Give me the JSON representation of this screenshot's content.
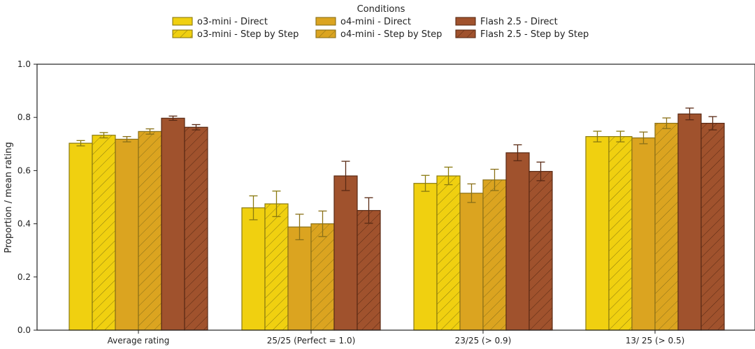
{
  "chart_data": {
    "type": "bar",
    "title": "",
    "xlabel": "",
    "ylabel": "Proportion / mean rating",
    "ylim": [
      0,
      1.0
    ],
    "yticks": [
      "0.0",
      "0.2",
      "0.4",
      "0.6",
      "0.8",
      "1.0"
    ],
    "grid": false,
    "legend": {
      "title": "Conditions",
      "placement": "top-center"
    },
    "categories": [
      "Average rating",
      "25/25 (Perfect = 1.0)",
      "23/25 (> 0.9)",
      "13/ 25 (> 0.5)"
    ],
    "series": [
      {
        "name": "o3-mini - Direct",
        "color": "#f0d010",
        "edge": "#8a7a10",
        "hatch": false,
        "values": [
          0.703,
          0.46,
          0.552,
          0.728
        ],
        "errors": [
          0.01,
          0.045,
          0.03,
          0.02
        ]
      },
      {
        "name": "o3-mini - Step by Step",
        "color": "#f0d010",
        "edge": "#8a7a10",
        "hatch": true,
        "values": [
          0.733,
          0.475,
          0.58,
          0.728
        ],
        "errors": [
          0.01,
          0.048,
          0.033,
          0.02
        ]
      },
      {
        "name": "o4-mini - Direct",
        "color": "#dba420",
        "edge": "#8a7018",
        "hatch": false,
        "values": [
          0.718,
          0.388,
          0.515,
          0.723
        ],
        "errors": [
          0.01,
          0.048,
          0.035,
          0.022
        ]
      },
      {
        "name": "o4-mini - Step by Step",
        "color": "#dba420",
        "edge": "#8a7018",
        "hatch": true,
        "values": [
          0.747,
          0.4,
          0.565,
          0.778
        ],
        "errors": [
          0.01,
          0.048,
          0.04,
          0.02
        ]
      },
      {
        "name": "Flash 2.5 - Direct",
        "color": "#a0522d",
        "edge": "#5a2a14",
        "hatch": false,
        "values": [
          0.797,
          0.58,
          0.667,
          0.813
        ],
        "errors": [
          0.008,
          0.055,
          0.03,
          0.022
        ]
      },
      {
        "name": "Flash 2.5 - Step by Step",
        "color": "#a0522d",
        "edge": "#5a2a14",
        "hatch": true,
        "values": [
          0.763,
          0.45,
          0.597,
          0.778
        ],
        "errors": [
          0.01,
          0.048,
          0.035,
          0.025
        ]
      }
    ]
  }
}
